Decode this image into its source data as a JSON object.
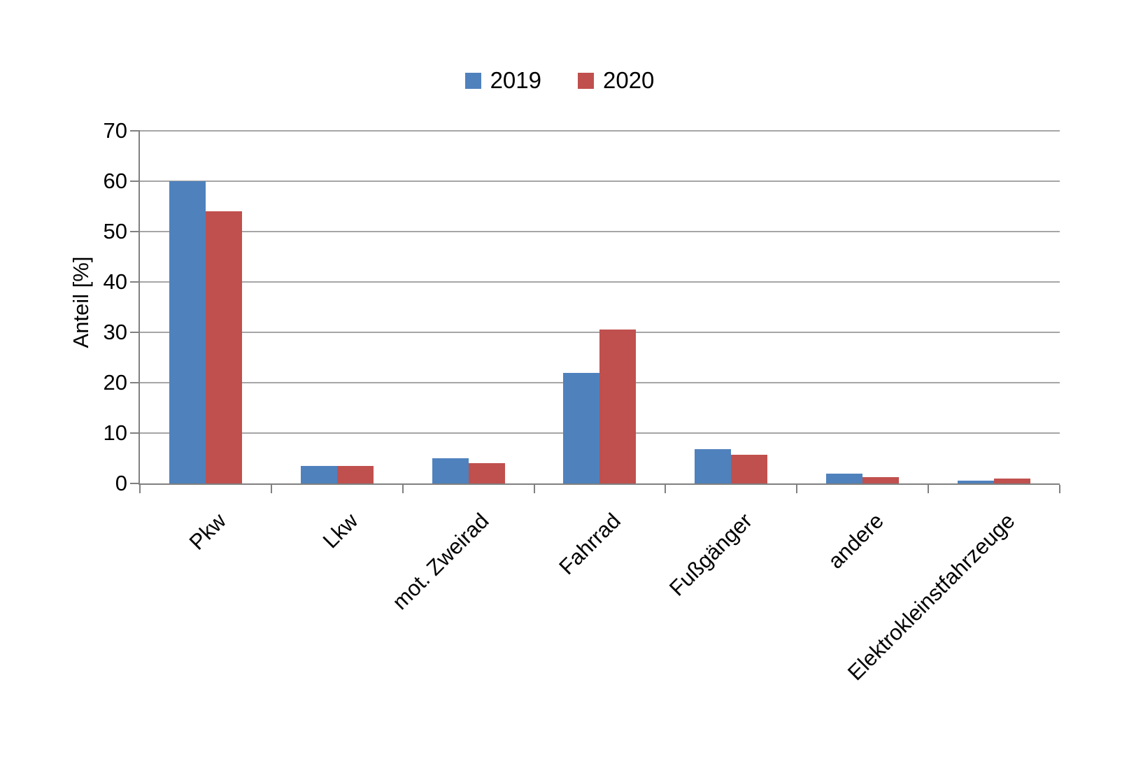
{
  "legend": {
    "items": [
      {
        "label": "2019",
        "color": "#4f81bd"
      },
      {
        "label": "2020",
        "color": "#c0504d"
      }
    ]
  },
  "chart_data": {
    "type": "bar",
    "title": "",
    "categories": [
      "Pkw",
      "Lkw",
      "mot. Zweirad",
      "Fahrrad",
      "Fußgänger",
      "andere",
      "Elektrokleinstfahrzeuge"
    ],
    "series": [
      {
        "name": "2019",
        "color": "#4f81bd",
        "values": [
          60,
          3.5,
          5,
          22,
          6.8,
          2,
          0.5
        ]
      },
      {
        "name": "2020",
        "color": "#c0504d",
        "values": [
          54,
          3.5,
          4,
          30.5,
          5.7,
          1.2,
          1
        ]
      }
    ],
    "xlabel": "",
    "ylabel": "Anteil [%]",
    "ylim": [
      0,
      70
    ],
    "yticks": [
      0,
      10,
      20,
      30,
      40,
      50,
      60,
      70
    ],
    "grid": true,
    "legend_position": "top-center",
    "colors": {
      "axis": "#808080",
      "gridline": "#a6a6a6",
      "text": "#000000",
      "background": "#ffffff"
    }
  }
}
